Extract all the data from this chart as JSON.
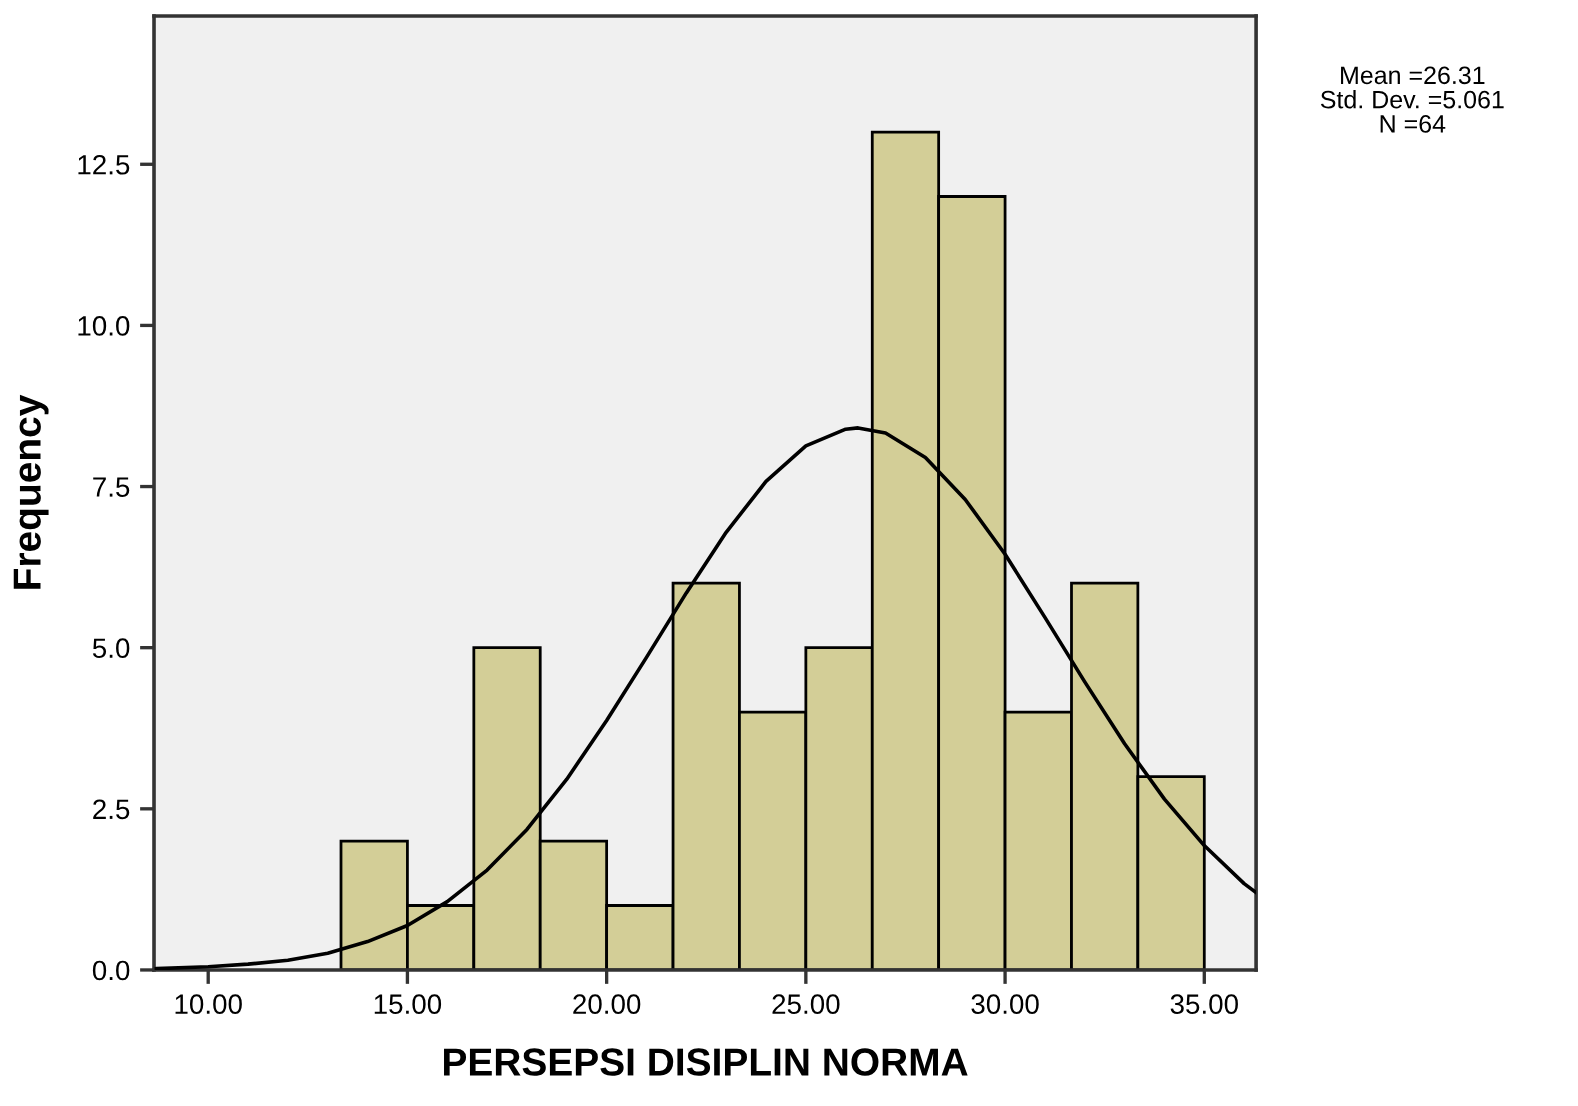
{
  "chart_data": {
    "type": "histogram",
    "xlabel": "PERSEPSI DISIPLIN NORMA",
    "ylabel": "Frequency",
    "bins": [
      13.333,
      15,
      16.667,
      18.333,
      20,
      21.667,
      23.333,
      25,
      26.667,
      28.333,
      30,
      31.667,
      33.333,
      35
    ],
    "values": [
      2,
      1,
      5,
      2,
      1,
      6,
      4,
      5,
      13,
      12,
      4,
      6,
      3
    ],
    "color": "#d3ce97",
    "series": [
      {
        "type": "line",
        "color": "#000000",
        "x": [
          8.7,
          10,
          11,
          12,
          13,
          14,
          15,
          16,
          17,
          18,
          19,
          20,
          21,
          22,
          23,
          24,
          25,
          26,
          26.31,
          27,
          28,
          29,
          30,
          31,
          32,
          33,
          34,
          35,
          36,
          36.3
        ],
        "values": [
          0.02,
          0.05,
          0.09,
          0.15,
          0.26,
          0.44,
          0.69,
          1.06,
          1.55,
          2.18,
          2.96,
          3.87,
          4.85,
          5.85,
          6.79,
          7.58,
          8.13,
          8.39,
          8.41,
          8.33,
          7.95,
          7.3,
          6.45,
          5.47,
          4.47,
          3.51,
          2.65,
          1.93,
          1.34,
          1.2
        ]
      }
    ],
    "xlim": [
      8.64,
      36.3
    ],
    "ylim": [
      0,
      14.8
    ],
    "xticks": [
      {
        "value": 10,
        "label": "10.00"
      },
      {
        "value": 15,
        "label": "15.00"
      },
      {
        "value": 20,
        "label": "20.00"
      },
      {
        "value": 25,
        "label": "25.00"
      },
      {
        "value": 30,
        "label": "30.00"
      },
      {
        "value": 35,
        "label": "35.00"
      }
    ],
    "yticks": [
      {
        "value": 0,
        "label": "0.0"
      },
      {
        "value": 2.5,
        "label": "2.5"
      },
      {
        "value": 5,
        "label": "5.0"
      },
      {
        "value": 7.5,
        "label": "7.5"
      },
      {
        "value": 10,
        "label": "10.0"
      },
      {
        "value": 12.5,
        "label": "12.5"
      }
    ],
    "annotations": [
      "Mean =26.31",
      "Std. Dev. =5.061",
      "N =64"
    ]
  }
}
